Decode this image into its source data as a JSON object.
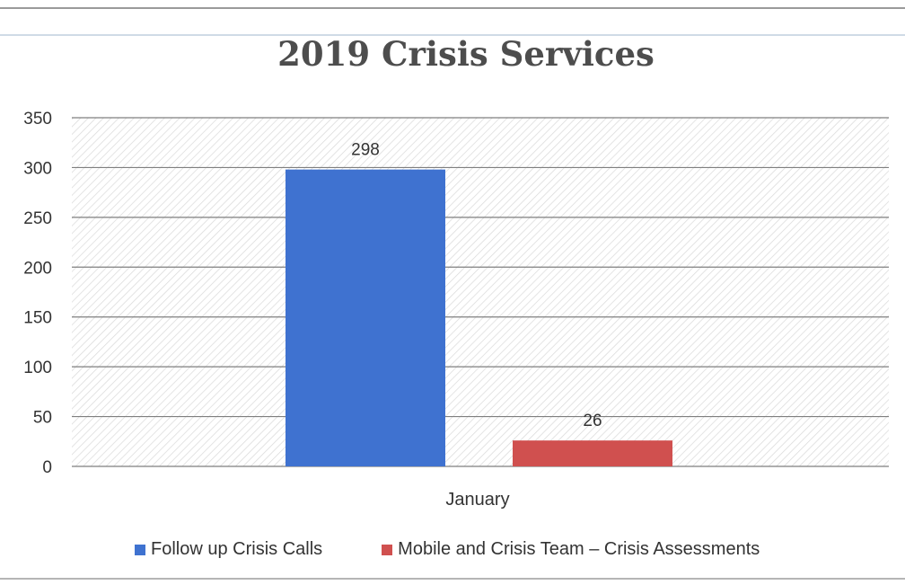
{
  "chart_data": {
    "type": "bar",
    "title": "2019  Crisis Services",
    "categories": [
      "January"
    ],
    "series": [
      {
        "name": "Follow up Crisis Calls",
        "values": [
          298
        ],
        "color": "#3f72d0"
      },
      {
        "name": "Mobile and Crisis Team – Crisis Assessments",
        "values": [
          26
        ],
        "color": "#d0504f"
      }
    ],
    "ylim": [
      0,
      350
    ],
    "yticks": [
      0,
      50,
      100,
      150,
      200,
      250,
      300,
      350
    ],
    "ytick_labels": [
      "0",
      "50",
      "100",
      "150",
      "200",
      "250",
      "300",
      "350"
    ],
    "data_labels": [
      "298",
      "26"
    ],
    "grid": true,
    "legend_position": "bottom"
  }
}
